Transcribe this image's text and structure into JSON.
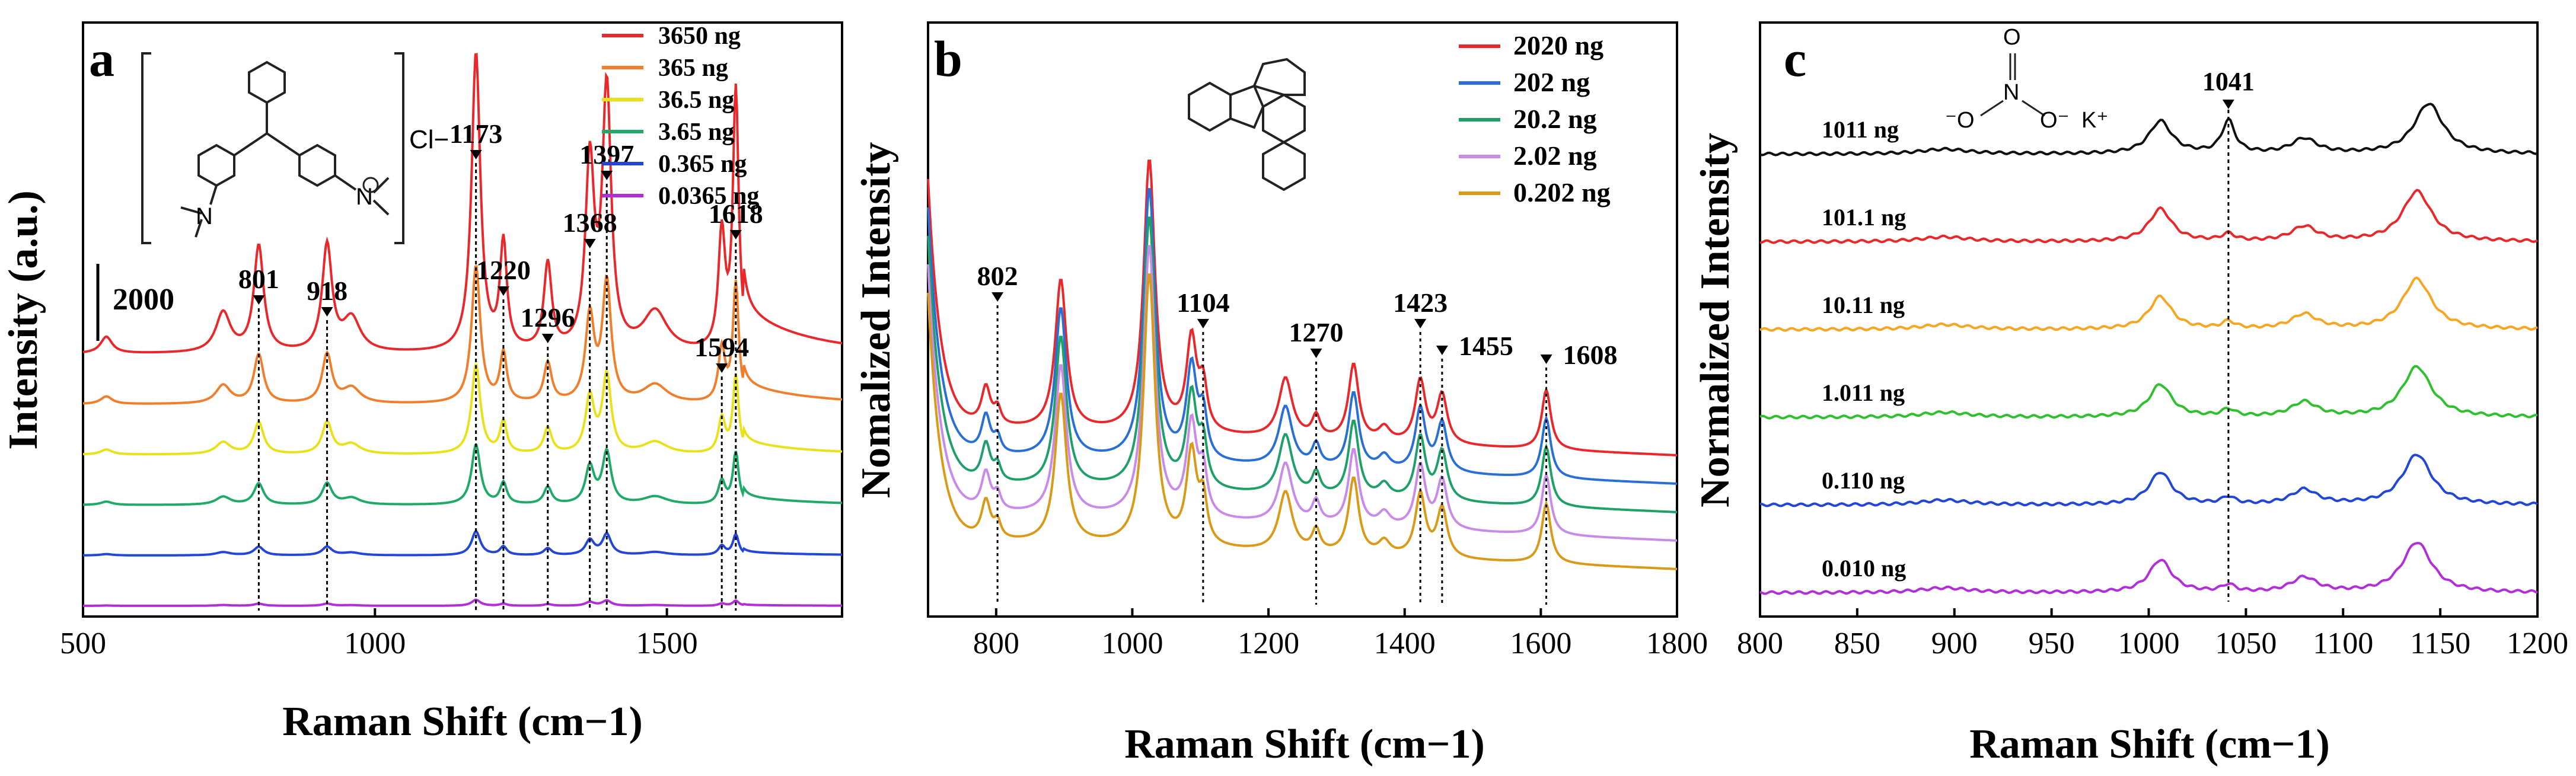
{
  "figure": {
    "panels": [
      "a",
      "b",
      "c"
    ]
  },
  "chart_data": [
    {
      "panel_label": "a",
      "type": "line",
      "title": "",
      "xlabel": "Raman Shift (cm−1)",
      "ylabel": "Intensity (a.u.)",
      "xlim": [
        500,
        1800
      ],
      "x_ticks": [
        "500",
        "1000",
        "1500"
      ],
      "grid": false,
      "legend_position": "top-right",
      "scale_bar_label": "2000",
      "inset_molecule": "triphenylmethane dye cation",
      "counter_ion_label": "Cl−",
      "peak_labels": [
        "801",
        "918",
        "1173",
        "1220",
        "1296",
        "1368",
        "1397",
        "1594",
        "1618"
      ],
      "peaks": [
        801,
        918,
        1173,
        1220,
        1296,
        1368,
        1397,
        1594,
        1618
      ],
      "series": [
        {
          "name": "3650 ng",
          "color": "#e8282b",
          "relative_intensity": 1.0
        },
        {
          "name": "365 ng",
          "color": "#f07f2d",
          "relative_intensity": 0.46
        },
        {
          "name": "36.5 ng",
          "color": "#e9e21a",
          "relative_intensity": 0.3
        },
        {
          "name": "3.65 ng",
          "color": "#1faa6a",
          "relative_intensity": 0.2
        },
        {
          "name": "0.365 ng",
          "color": "#2146d8",
          "relative_intensity": 0.08
        },
        {
          "name": "0.0365 ng",
          "color": "#b12fd9",
          "relative_intensity": 0.02
        }
      ]
    },
    {
      "panel_label": "b",
      "type": "line",
      "title": "",
      "xlabel": "Raman Shift (cm−1)",
      "ylabel": "Nomalized Intensity",
      "xlim": [
        700,
        1800
      ],
      "x_ticks": [
        "800",
        "1000",
        "1200",
        "1400",
        "1600",
        "1800"
      ],
      "grid": false,
      "legend_position": "top-right",
      "inset_molecule": "fluoranthene",
      "peak_labels": [
        "802",
        "1104",
        "1270",
        "1423",
        "1455",
        "1608"
      ],
      "peaks": [
        802,
        1104,
        1270,
        1423,
        1455,
        1608
      ],
      "series": [
        {
          "name": "2020 ng",
          "color": "#e8282b"
        },
        {
          "name": "202 ng",
          "color": "#2a6fd6"
        },
        {
          "name": "20.2 ng",
          "color": "#1fa068"
        },
        {
          "name": "2.02 ng",
          "color": "#c88be8"
        },
        {
          "name": "0.202 ng",
          "color": "#d99a18"
        }
      ]
    },
    {
      "panel_label": "c",
      "type": "line",
      "title": "",
      "xlabel": "Raman Shift (cm−1)",
      "ylabel": "Normalized Intensity",
      "xlim": [
        800,
        1200
      ],
      "x_ticks": [
        "800",
        "850",
        "900",
        "950",
        "1000",
        "1050",
        "1100",
        "1150",
        "1200"
      ],
      "grid": false,
      "legend_position": "inline-left",
      "inset_molecule": "potassium nitrate",
      "counter_ion_label": "K⁺",
      "peak_labels": [
        "1041"
      ],
      "peaks": [
        1041
      ],
      "series": [
        {
          "name": "1011 ng",
          "color": "#111111"
        },
        {
          "name": "101.1 ng",
          "color": "#e8282b"
        },
        {
          "name": "10.11 ng",
          "color": "#f5a623"
        },
        {
          "name": "1.011 ng",
          "color": "#2ec02e"
        },
        {
          "name": "0.110 ng",
          "color": "#2146d8"
        },
        {
          "name": "0.010 ng",
          "color": "#b12fd9"
        }
      ]
    }
  ]
}
